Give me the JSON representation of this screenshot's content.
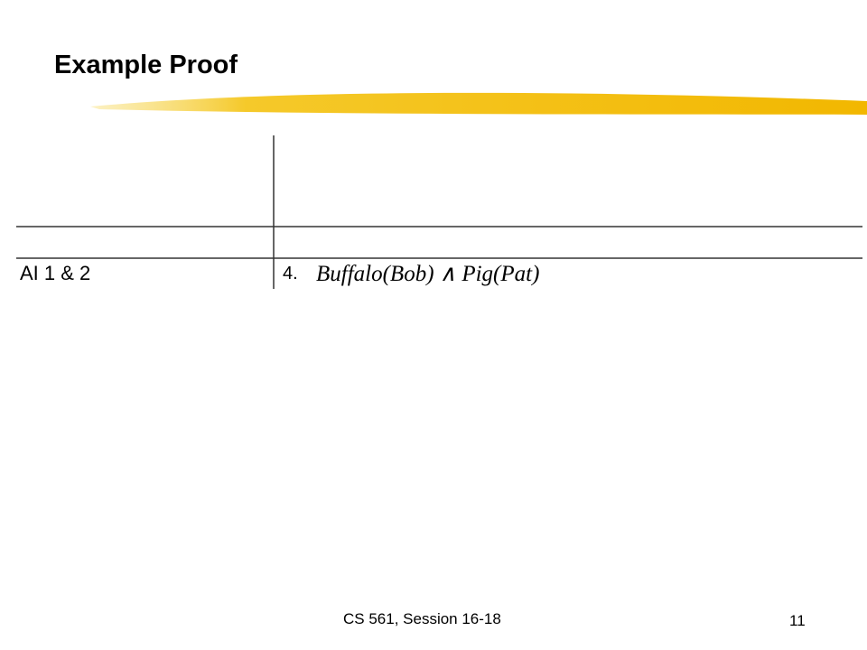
{
  "header": {
    "title": "Example Proof"
  },
  "table": {
    "rows": [
      [
        "AI 1 & 2",
        "4.",
        "Buffalo(Bob) ∧ Pig(Pat)"
      ]
    ]
  },
  "footer": {
    "course": "CS 561,  Session 16-18",
    "page": "11"
  }
}
